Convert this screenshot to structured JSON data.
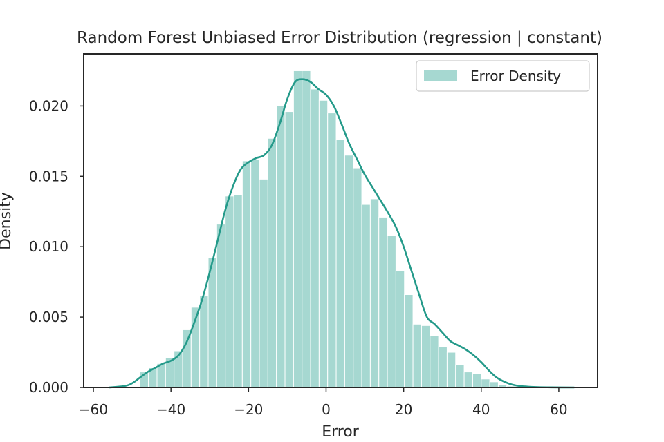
{
  "chart_data": {
    "type": "bar",
    "title": "Random Forest Unbiased Error Distribution (regression | constant)",
    "xlabel": "Error",
    "ylabel": "Density",
    "xlim": [
      -62.5,
      70
    ],
    "ylim": [
      0,
      0.0237
    ],
    "xticks": [
      -60,
      -40,
      -20,
      0,
      20,
      40,
      60
    ],
    "xtick_labels": [
      "−60",
      "−40",
      "−20",
      "0",
      "20",
      "40",
      "60"
    ],
    "yticks": [
      0,
      0.005,
      0.01,
      0.015,
      0.02
    ],
    "ytick_labels": [
      "0.000",
      "0.005",
      "0.010",
      "0.015",
      "0.020"
    ],
    "legend": {
      "label": "Error Density",
      "position": "top-right"
    },
    "grid": false,
    "colors": {
      "bar": "#a6d8d1",
      "kde": "#249a8a",
      "axes": "#262626"
    },
    "histogram": {
      "bin_edges": [
        -48,
        -45.8,
        -43.6,
        -41.4,
        -39.2,
        -37,
        -34.8,
        -32.6,
        -30.4,
        -28.2,
        -26,
        -23.8,
        -21.6,
        -19.4,
        -17.2,
        -15,
        -12.8,
        -10.6,
        -8.4,
        -6.2,
        -4,
        -1.8,
        0.4,
        2.6,
        4.8,
        7,
        9.2,
        11.4,
        13.6,
        15.8,
        18,
        20.2,
        22.4,
        24.6,
        26.8,
        29,
        31.2,
        33.4,
        35.6,
        37.8,
        40,
        42.2,
        44.4,
        46.6,
        48.8
      ],
      "densities": [
        0.0011,
        0.0014,
        0.0017,
        0.0021,
        0.0026,
        0.0041,
        0.0057,
        0.0065,
        0.0092,
        0.0116,
        0.0136,
        0.0137,
        0.0161,
        0.0162,
        0.0148,
        0.0177,
        0.02,
        0.0196,
        0.0225,
        0.0225,
        0.0212,
        0.0204,
        0.0195,
        0.0176,
        0.0165,
        0.0156,
        0.013,
        0.0134,
        0.0121,
        0.0108,
        0.0083,
        0.0066,
        0.0045,
        0.0044,
        0.0037,
        0.0029,
        0.0025,
        0.0016,
        0.0011,
        0.001,
        0.0006,
        0.0004,
        0.0002,
        0.0001
      ]
    },
    "kde": {
      "x": [
        -56,
        -52,
        -50,
        -48,
        -46,
        -44,
        -42,
        -40,
        -38,
        -36,
        -34,
        -32,
        -30,
        -28,
        -26,
        -24,
        -22,
        -20,
        -18,
        -16,
        -14,
        -12,
        -10,
        -8,
        -6,
        -4,
        -2,
        0,
        2,
        4,
        6,
        8,
        10,
        12,
        14,
        16,
        18,
        20,
        22,
        24,
        26,
        28,
        30,
        32,
        34,
        36,
        38,
        40,
        42,
        44,
        46,
        48,
        50,
        54,
        58,
        64
      ],
      "y": [
        0,
        0.0001,
        0.0003,
        0.0007,
        0.0011,
        0.0014,
        0.0017,
        0.0019,
        0.0023,
        0.0032,
        0.0046,
        0.0062,
        0.0082,
        0.0104,
        0.0126,
        0.0143,
        0.0155,
        0.016,
        0.0163,
        0.0165,
        0.0172,
        0.0187,
        0.0205,
        0.0217,
        0.0219,
        0.0217,
        0.0212,
        0.0208,
        0.02,
        0.0187,
        0.0173,
        0.0162,
        0.0151,
        0.0142,
        0.0133,
        0.0124,
        0.0114,
        0.01,
        0.0083,
        0.0066,
        0.005,
        0.0045,
        0.0039,
        0.0033,
        0.003,
        0.0027,
        0.0023,
        0.0018,
        0.0012,
        0.0007,
        0.0004,
        0.0002,
        0.0001,
        3e-05,
        1e-05,
        0
      ]
    }
  }
}
